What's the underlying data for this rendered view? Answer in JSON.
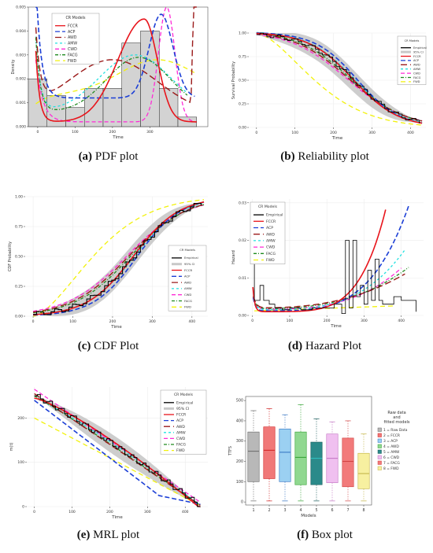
{
  "colors": {
    "FCCR": "#e8141b",
    "ACP": "#1c3fd6",
    "AWD": "#9b1a1a",
    "AMW": "#22e0e0",
    "CWD": "#ff2bd6",
    "FACG": "#1f8a1f",
    "FWD": "#f2f20c",
    "Empirical": "#000000",
    "CI": "#c8c8c8",
    "hist": "#d3d3d3"
  },
  "legend_title": "CR Models",
  "legends": {
    "pdf": [
      "FCCR",
      "ACP",
      "AWD",
      "AMW",
      "CWD",
      "FACG",
      "FWD"
    ],
    "rel": [
      "Empirical",
      "95% CI",
      "FCCR",
      "ACP",
      "AWD",
      "AMW",
      "CWD",
      "FACG",
      "FWD"
    ],
    "cdf": [
      "Empirical",
      "95% CI",
      "FCCR",
      "ACP",
      "AWD",
      "AMW",
      "CWD",
      "FACG",
      "FWD"
    ],
    "haz": [
      "Empirical",
      "FCCR",
      "ACP",
      "AWD",
      "AMW",
      "CWD",
      "FACG",
      "FWD"
    ],
    "mrl": [
      "Empirical",
      "95% CI",
      "FCCR",
      "ACP",
      "AWD",
      "AMW",
      "CWD",
      "FACG",
      "FWD"
    ]
  },
  "captions": [
    {
      "label": "(a)",
      "text": "PDF plot"
    },
    {
      "label": "(b)",
      "text": "Reliability plot"
    },
    {
      "label": "(c)",
      "text": "CDF Plot"
    },
    {
      "label": "(d)",
      "text": "Hazard Plot"
    },
    {
      "label": "(e)",
      "text": "MRL plot"
    },
    {
      "label": "(f)",
      "text": "Box plot"
    }
  ],
  "chart_data": [
    {
      "type": "line",
      "panel": "pdf",
      "xlabel": "Time",
      "ylabel": "Density",
      "xticks": [
        0,
        100,
        200,
        300
      ],
      "yticks": [
        "0.000",
        "0.001",
        "0.002",
        "0.003",
        "0.004",
        "0.005"
      ],
      "xlim": [
        -25,
        455
      ],
      "ylim": [
        0,
        0.005
      ],
      "histogram": {
        "edges": [
          -25,
          25,
          75,
          125,
          175,
          225,
          275,
          325,
          375,
          425
        ],
        "heights": [
          0.002,
          0.0013,
          0.0008,
          0.0016,
          0.0016,
          0.0035,
          0.004,
          0.0016,
          0.0004
        ]
      }
    },
    {
      "type": "line",
      "panel": "rel",
      "xlabel": "Time",
      "ylabel": "Survival Probability",
      "xticks": [
        0,
        100,
        200,
        300,
        400
      ],
      "yticks": [
        "0.00",
        "0.25",
        "0.50",
        "0.75",
        "1.00"
      ],
      "xlim": [
        -20,
        440
      ],
      "ylim": [
        0,
        1
      ]
    },
    {
      "type": "line",
      "panel": "cdf",
      "xlabel": "Time",
      "ylabel": "CDF Probability",
      "xticks": [
        0,
        100,
        200,
        300,
        400
      ],
      "yticks": [
        "0.00",
        "0.25",
        "0.50",
        "0.75",
        "1.00"
      ],
      "xlim": [
        -20,
        440
      ],
      "ylim": [
        0,
        1
      ]
    },
    {
      "type": "line",
      "panel": "haz",
      "xlabel": "Time",
      "ylabel": "Hazard",
      "xticks": [
        0,
        100,
        200,
        300,
        400
      ],
      "yticks": [
        "0.00",
        "0.01",
        "0.02",
        "0.03"
      ],
      "xlim": [
        -10,
        460
      ],
      "ylim": [
        0,
        0.031
      ]
    },
    {
      "type": "line",
      "panel": "mrl",
      "xlabel": "Time",
      "ylabel": "m(t)",
      "xticks": [
        0,
        100,
        200,
        300,
        400
      ],
      "yticks": [
        "0",
        "100",
        "200"
      ],
      "xlim": [
        -20,
        460
      ],
      "ylim": [
        0,
        270
      ]
    },
    {
      "type": "box",
      "panel": "box",
      "xlabel": "Models",
      "ylabel": "TTFS",
      "categories": [
        "1",
        "2",
        "3",
        "4",
        "5",
        "6",
        "7",
        "8"
      ],
      "yticks": [
        "0",
        "100",
        "200",
        "300",
        "400",
        "500"
      ],
      "ylim": [
        -15,
        520
      ],
      "legend_title": "Raw data\nand\nfitted models",
      "legend": [
        "1 = Raw Data",
        "2 = FCCR",
        "3 = ACP",
        "4 = AWD",
        "5 = AMW",
        "6 = CWD",
        "7 = FACG",
        "8 = FWD"
      ],
      "fills": [
        "#b8b8b8",
        "#f07878",
        "#9bd0f2",
        "#90d890",
        "#2b8a8a",
        "#f0c0f0",
        "#f27a7a",
        "#f7f0a0"
      ],
      "borders": [
        "#666666",
        "#d02020",
        "#3070c0",
        "#30a030",
        "#1a5a5a",
        "#c070c0",
        "#d04040",
        "#c0b040"
      ],
      "q1": [
        100,
        115,
        100,
        85,
        85,
        95,
        75,
        65
      ],
      "median": [
        250,
        255,
        245,
        220,
        215,
        215,
        200,
        140
      ],
      "q3": [
        345,
        370,
        360,
        345,
        295,
        335,
        315,
        240
      ],
      "whisker_low": [
        5,
        5,
        5,
        5,
        5,
        5,
        5,
        5
      ],
      "whisker_high": [
        450,
        460,
        430,
        480,
        410,
        395,
        400,
        335
      ]
    }
  ]
}
